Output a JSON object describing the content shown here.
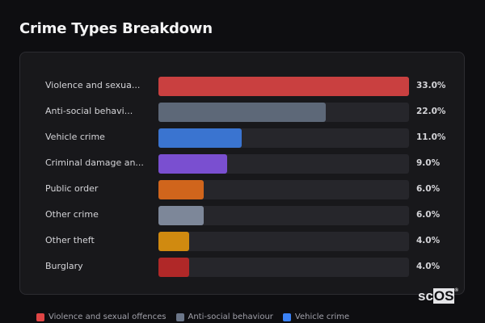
{
  "chart_data": {
    "type": "bar",
    "orientation": "horizontal",
    "title": "Crime Types Breakdown",
    "categories": [
      "Violence and sexua...",
      "Anti-social behavi...",
      "Vehicle crime",
      "Criminal damage an...",
      "Public order",
      "Other crime",
      "Other theft",
      "Burglary"
    ],
    "values": [
      33.0,
      22.0,
      11.0,
      9.0,
      6.0,
      6.0,
      4.0,
      4.0
    ],
    "value_labels": [
      "33.0%",
      "22.0%",
      "11.0%",
      "9.0%",
      "6.0%",
      "6.0%",
      "4.0%",
      "4.0%"
    ],
    "colors": [
      "#c94040",
      "#5d6878",
      "#3a74d0",
      "#7a4fd0",
      "#d0651c",
      "#7d8799",
      "#d08a10",
      "#b02828"
    ],
    "unit": "%",
    "grid": false,
    "legend_position": "bottom",
    "legend": [
      {
        "label": "Violence and sexual offences",
        "color": "#e04545"
      },
      {
        "label": "Anti-social behaviour",
        "color": "#6b7689"
      },
      {
        "label": "Vehicle crime",
        "color": "#3b82f6"
      }
    ]
  },
  "logo": {
    "text_a": "sc",
    "text_b": "OS",
    "mark": "®"
  }
}
